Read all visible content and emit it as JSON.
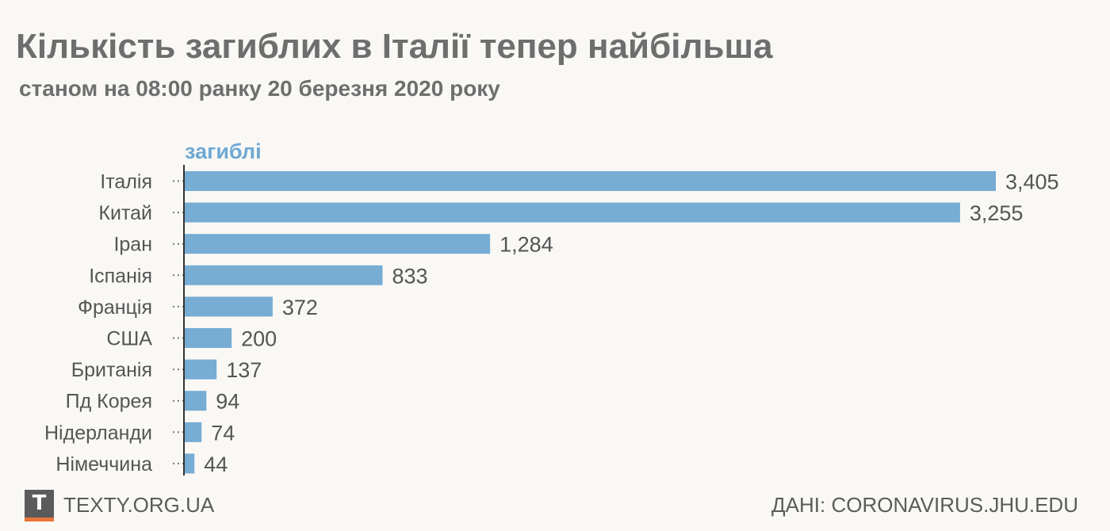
{
  "header": {
    "title": "Кількість загиблих в Італії тепер найбільша",
    "subtitle": "станом на 08:00 ранку 20 березня 2020 року"
  },
  "chart_data": {
    "type": "bar",
    "orientation": "horizontal",
    "series_label": "загиблі",
    "categories": [
      "Італія",
      "Китай",
      "Іран",
      "Іспанія",
      "Франція",
      "США",
      "Британія",
      "Пд Корея",
      "Нідерланди",
      "Німеччина"
    ],
    "values": [
      3405,
      3255,
      1284,
      833,
      372,
      200,
      137,
      94,
      74,
      44
    ],
    "value_labels": [
      "3,405",
      "3,255",
      "1,284",
      "833",
      "372",
      "200",
      "137",
      "94",
      "74",
      "44"
    ],
    "xlim": [
      0,
      3405
    ],
    "grid": false,
    "bar_color": "#77acd3",
    "series_label_color": "#6fa8d4"
  },
  "footer": {
    "logo_letter": "T",
    "site": "TEXTY.ORG.UA",
    "source": "ДАНІ: CORONAVIRUS.JHU.EDU"
  }
}
